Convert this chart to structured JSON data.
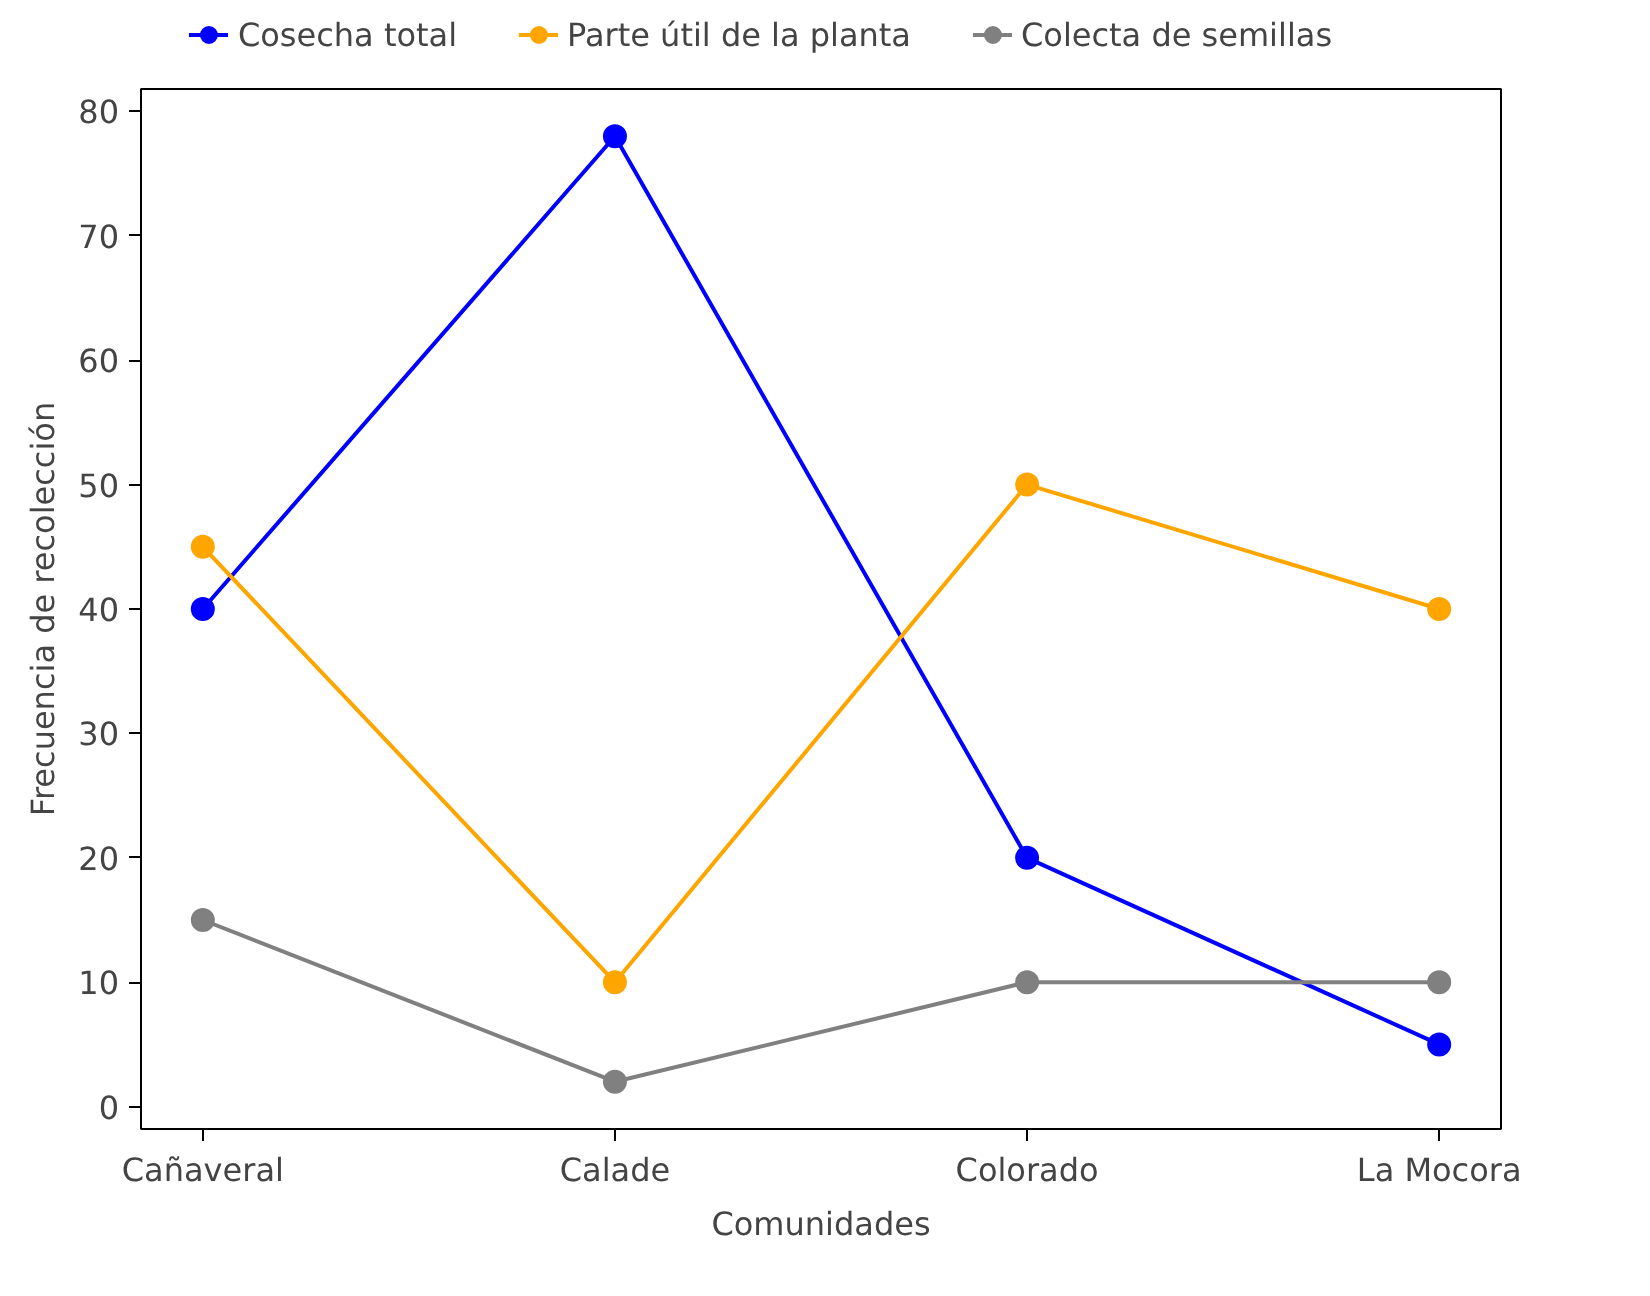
{
  "chart_data": {
    "type": "line",
    "xlabel": "Comunidades",
    "ylabel": "Frecuencia de recolección",
    "categories": [
      "Cañaveral",
      "Calade",
      "Colorado",
      "La Mocora"
    ],
    "series": [
      {
        "name": "Cosecha total",
        "color": "#0000ff",
        "values": [
          40,
          78,
          20,
          5
        ]
      },
      {
        "name": "Parte útil de la planta",
        "color": "#ffa500",
        "values": [
          45,
          10,
          50,
          40
        ]
      },
      {
        "name": "Colecta de semillas",
        "color": "#808080",
        "values": [
          15,
          2,
          10,
          10
        ]
      }
    ],
    "ylim": [
      -1.8,
      81.8
    ],
    "yticks": [
      0,
      10,
      20,
      30,
      40,
      50,
      60,
      70,
      80
    ],
    "grid": false,
    "legend": "top",
    "marker": "circle",
    "line_style": "solid"
  }
}
